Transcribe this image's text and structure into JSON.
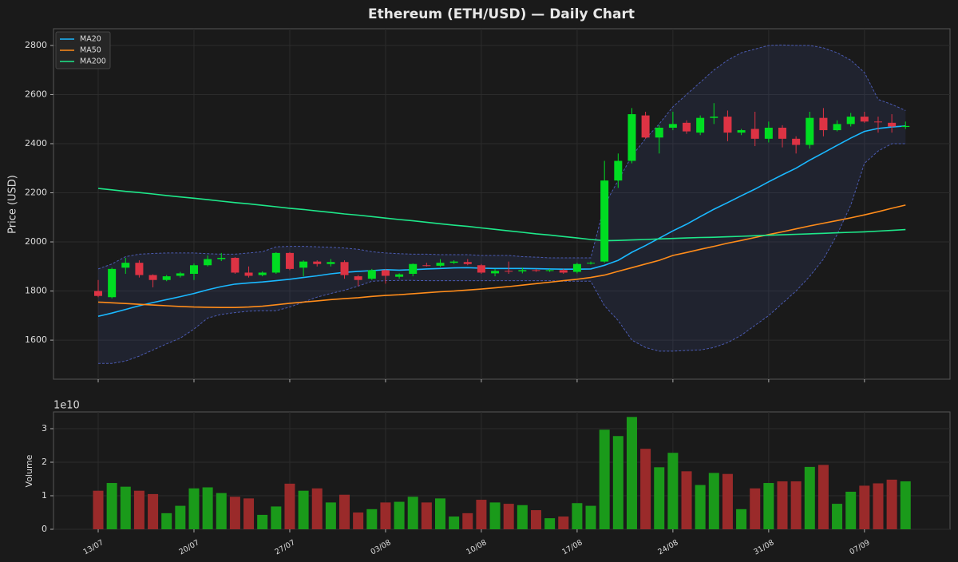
{
  "chart_data": {
    "type": "candlestick",
    "title": "Ethereum (ETH/USD) — Daily Chart",
    "ylabel": "Price (USD)",
    "categories": [
      "13/07",
      null,
      null,
      null,
      null,
      null,
      null,
      "20/07",
      null,
      null,
      null,
      null,
      null,
      null,
      "27/07",
      null,
      null,
      null,
      null,
      null,
      null,
      "03/08",
      null,
      null,
      null,
      null,
      null,
      null,
      "10/08",
      null,
      null,
      null,
      null,
      null,
      null,
      "17/08",
      null,
      null,
      null,
      null,
      null,
      null,
      "24/08",
      null,
      null,
      null,
      null,
      null,
      null,
      "31/08",
      null,
      null,
      null,
      null,
      null,
      null,
      "07/09",
      null,
      null,
      null
    ],
    "open": [
      1800,
      1775,
      1895,
      1915,
      1865,
      1845,
      1862,
      1870,
      1905,
      1930,
      1935,
      1875,
      1865,
      1875,
      1955,
      1895,
      1920,
      1910,
      1918,
      1860,
      1850,
      1885,
      1858,
      1870,
      1905,
      1903,
      1915,
      1918,
      1905,
      1872,
      1882,
      1880,
      1885,
      1882,
      1885,
      1878,
      1912,
      1920,
      2250,
      2330,
      2515,
      2425,
      2465,
      2485,
      2445,
      2505,
      2510,
      2445,
      2460,
      2420,
      2465,
      2420,
      2395,
      2505,
      2455,
      2480,
      2510,
      2490,
      2485,
      2468
    ],
    "high": [
      1845,
      1895,
      1935,
      1925,
      1868,
      1865,
      1878,
      1912,
      1945,
      1955,
      1938,
      1900,
      1880,
      1958,
      1958,
      1925,
      1925,
      1930,
      1925,
      1865,
      1890,
      1890,
      1872,
      1912,
      1915,
      1930,
      1925,
      1930,
      1910,
      1890,
      1920,
      1895,
      1890,
      1890,
      1890,
      1915,
      1920,
      2330,
      2360,
      2545,
      2530,
      2475,
      2530,
      2495,
      2515,
      2565,
      2535,
      2460,
      2530,
      2490,
      2475,
      2430,
      2530,
      2545,
      2495,
      2525,
      2530,
      2510,
      2520,
      2490
    ],
    "low": [
      1775,
      1770,
      1870,
      1855,
      1815,
      1840,
      1855,
      1845,
      1900,
      1922,
      1870,
      1855,
      1860,
      1870,
      1885,
      1860,
      1900,
      1900,
      1850,
      1820,
      1845,
      1830,
      1850,
      1860,
      1900,
      1898,
      1910,
      1905,
      1870,
      1860,
      1870,
      1872,
      1878,
      1878,
      1870,
      1872,
      1908,
      1915,
      2220,
      2320,
      2420,
      2360,
      2455,
      2440,
      2435,
      2480,
      2410,
      2435,
      2390,
      2405,
      2385,
      2360,
      2380,
      2430,
      2450,
      2470,
      2485,
      2445,
      2445,
      2460
    ],
    "close": [
      1780,
      1890,
      1915,
      1865,
      1845,
      1860,
      1872,
      1905,
      1930,
      1935,
      1875,
      1862,
      1875,
      1955,
      1890,
      1920,
      1910,
      1918,
      1865,
      1845,
      1885,
      1862,
      1868,
      1910,
      1903,
      1915,
      1920,
      1910,
      1875,
      1882,
      1880,
      1885,
      1882,
      1885,
      1875,
      1910,
      1915,
      2250,
      2330,
      2520,
      2425,
      2465,
      2480,
      2450,
      2505,
      2510,
      2445,
      2455,
      2420,
      2465,
      2420,
      2395,
      2505,
      2455,
      2480,
      2510,
      2490,
      2487,
      2470,
      2472
    ],
    "up_color": "#00dd22",
    "down_color": "#dd3344",
    "lines": [
      {
        "name": "MA20",
        "color": "#1ab8ff",
        "values": [
          1697,
          1710,
          1725,
          1740,
          1753,
          1765,
          1777,
          1790,
          1805,
          1818,
          1828,
          1833,
          1837,
          1842,
          1848,
          1855,
          1862,
          1870,
          1876,
          1880,
          1883,
          1887,
          1885,
          1887,
          1890,
          1892,
          1894,
          1895,
          1893,
          1892,
          1892,
          1892,
          1891,
          1890,
          1889,
          1889,
          1890,
          1905,
          1925,
          1958,
          1985,
          2015,
          2045,
          2072,
          2103,
          2133,
          2160,
          2188,
          2215,
          2245,
          2273,
          2300,
          2333,
          2363,
          2393,
          2423,
          2450,
          2462,
          2468,
          2472
        ]
      },
      {
        "name": "MA50",
        "color": "#ff8c1a",
        "values": [
          1755,
          1752,
          1749,
          1746,
          1743,
          1740,
          1737,
          1735,
          1734,
          1733,
          1733,
          1735,
          1738,
          1744,
          1750,
          1755,
          1760,
          1765,
          1769,
          1773,
          1778,
          1782,
          1785,
          1789,
          1793,
          1797,
          1800,
          1804,
          1808,
          1813,
          1818,
          1824,
          1830,
          1836,
          1842,
          1848,
          1855,
          1865,
          1880,
          1895,
          1910,
          1925,
          1945,
          1957,
          1970,
          1982,
          1995,
          2006,
          2018,
          2030,
          2041,
          2053,
          2065,
          2076,
          2087,
          2098,
          2110,
          2123,
          2137,
          2150
        ]
      },
      {
        "name": "MA200",
        "color": "#1ee88a",
        "values": [
          2218,
          2212,
          2206,
          2201,
          2195,
          2189,
          2183,
          2178,
          2172,
          2166,
          2160,
          2155,
          2149,
          2143,
          2137,
          2132,
          2126,
          2120,
          2114,
          2109,
          2103,
          2097,
          2091,
          2086,
          2080,
          2074,
          2068,
          2063,
          2057,
          2051,
          2045,
          2039,
          2033,
          2028,
          2022,
          2016,
          2010,
          2005,
          2006,
          2008,
          2010,
          2012,
          2014,
          2016,
          2018,
          2019,
          2021,
          2023,
          2025,
          2027,
          2029,
          2031,
          2033,
          2035,
          2037,
          2039,
          2041,
          2044,
          2047,
          2050
        ]
      }
    ],
    "band_upper": [
      1890,
      1910,
      1940,
      1950,
      1953,
      1955,
      1955,
      1955,
      1952,
      1950,
      1950,
      1955,
      1960,
      1980,
      1982,
      1982,
      1980,
      1978,
      1975,
      1970,
      1960,
      1955,
      1952,
      1950,
      1950,
      1948,
      1948,
      1948,
      1945,
      1945,
      1945,
      1940,
      1938,
      1935,
      1935,
      1935,
      1935,
      2150,
      2250,
      2350,
      2420,
      2480,
      2550,
      2600,
      2650,
      2700,
      2740,
      2770,
      2785,
      2800,
      2802,
      2800,
      2800,
      2790,
      2770,
      2740,
      2690,
      2580,
      2560,
      2535
    ],
    "band_lower": [
      1505,
      1505,
      1515,
      1535,
      1560,
      1585,
      1608,
      1645,
      1690,
      1705,
      1712,
      1718,
      1720,
      1720,
      1735,
      1755,
      1775,
      1790,
      1803,
      1820,
      1840,
      1842,
      1843,
      1843,
      1842,
      1842,
      1842,
      1842,
      1842,
      1842,
      1842,
      1842,
      1842,
      1842,
      1840,
      1840,
      1840,
      1740,
      1680,
      1600,
      1570,
      1555,
      1555,
      1558,
      1560,
      1570,
      1590,
      1620,
      1660,
      1700,
      1750,
      1800,
      1860,
      1930,
      2030,
      2150,
      2320,
      2370,
      2400,
      2400
    ],
    "band_color": "#4a5ab0",
    "ylim": [
      1441,
      2868
    ],
    "yticks": [
      1600,
      1800,
      2000,
      2200,
      2400,
      2600,
      2800
    ],
    "grid": true,
    "legend": "upper left",
    "volume": {
      "ylabel": "Volume",
      "offset_label": "1e10",
      "values": [
        1.15,
        1.38,
        1.27,
        1.15,
        1.05,
        0.48,
        0.7,
        1.22,
        1.25,
        1.08,
        0.97,
        0.92,
        0.43,
        0.68,
        1.36,
        1.15,
        1.22,
        0.8,
        1.03,
        0.5,
        0.6,
        0.8,
        0.82,
        0.97,
        0.8,
        0.92,
        0.38,
        0.48,
        0.88,
        0.8,
        0.76,
        0.72,
        0.57,
        0.33,
        0.38,
        0.78,
        0.7,
        2.97,
        2.78,
        3.35,
        2.4,
        1.85,
        2.28,
        1.73,
        1.32,
        1.68,
        1.65,
        0.6,
        1.22,
        1.38,
        1.43,
        1.43,
        1.86,
        1.92,
        0.76,
        1.12,
        1.3,
        1.37,
        1.48,
        1.43
      ],
      "up_color": "#1a9a1a",
      "down_color": "#9a2a2a",
      "ylim": [
        0,
        3.5
      ],
      "yticks": [
        0,
        1,
        2,
        3
      ]
    }
  }
}
